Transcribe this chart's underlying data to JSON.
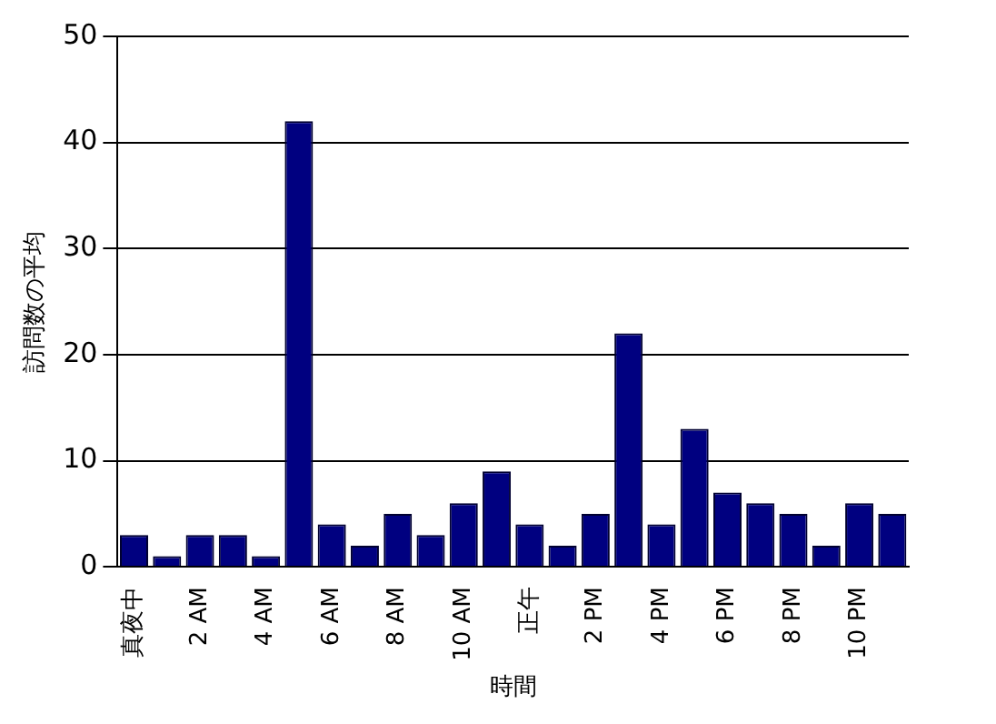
{
  "chart_data": {
    "type": "bar",
    "xlabel": "時間",
    "ylabel": "訪問数の平均",
    "categories": [
      "真夜中",
      null,
      "2 AM",
      null,
      "4 AM",
      null,
      "6 AM",
      null,
      "8 AM",
      null,
      "10 AM",
      null,
      "正午",
      null,
      "2 PM",
      null,
      "4 PM",
      null,
      "6 PM",
      null,
      "8 PM",
      null,
      "10 PM",
      null
    ],
    "values": [
      3,
      1,
      3,
      3,
      1,
      42,
      4,
      2,
      5,
      3,
      6,
      9,
      4,
      2,
      5,
      22,
      4,
      13,
      7,
      6,
      5,
      2,
      6,
      5
    ],
    "color": "#000080",
    "ylim": [
      0,
      50
    ],
    "yticks": [
      0,
      10,
      20,
      30,
      40,
      50
    ],
    "grid": "y"
  }
}
